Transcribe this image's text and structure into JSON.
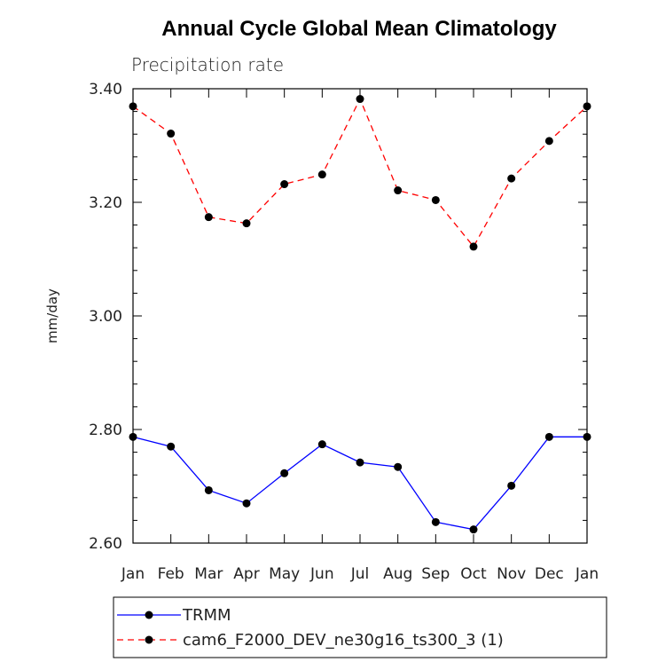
{
  "chart_data": {
    "type": "line",
    "title": "Annual Cycle Global Mean Climatology",
    "subtitle": "Precipitation rate",
    "ylabel": "mm/day",
    "xlabel": "",
    "categories": [
      "Jan",
      "Feb",
      "Mar",
      "Apr",
      "May",
      "Jun",
      "Jul",
      "Aug",
      "Sep",
      "Oct",
      "Nov",
      "Dec",
      "Jan"
    ],
    "ylim": [
      2.6,
      3.4
    ],
    "yticks": [
      "2.60",
      "2.80",
      "3.00",
      "3.20",
      "3.40"
    ],
    "grid": false,
    "legend_position": "bottom",
    "series": [
      {
        "name": "TRMM",
        "color": "#0000ff",
        "dash": "solid",
        "marker": "circle",
        "values": [
          2.787,
          2.77,
          2.693,
          2.67,
          2.723,
          2.774,
          2.742,
          2.734,
          2.637,
          2.624,
          2.701,
          2.787,
          2.787
        ]
      },
      {
        "name": "cam6_F2000_DEV_ne30g16_ts300_3 (1)",
        "color": "#ff0000",
        "dash": "dashed",
        "marker": "circle",
        "values": [
          3.369,
          3.321,
          3.174,
          3.163,
          3.232,
          3.249,
          3.382,
          3.221,
          3.204,
          3.122,
          3.242,
          3.308,
          3.369
        ]
      }
    ]
  }
}
